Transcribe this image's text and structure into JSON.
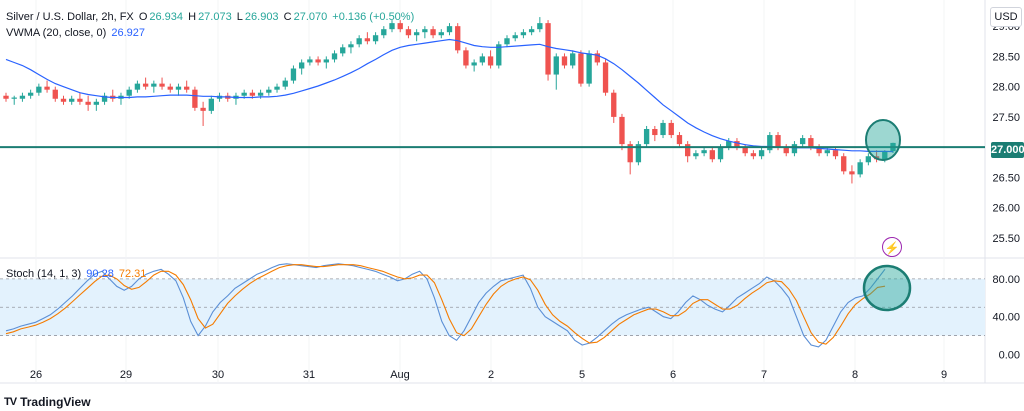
{
  "header": {
    "symbol": "Silver / U.S. Dollar, 2h, FX",
    "o_label": "O",
    "o_value": "26.934",
    "h_label": "H",
    "h_value": "27.073",
    "l_label": "L",
    "l_value": "26.903",
    "c_label": "C",
    "c_value": "27.070",
    "change": "+0.136 (+0.50%)"
  },
  "vwma": {
    "label": "VWMA (20, close, 0)",
    "value": "26.927"
  },
  "stoch": {
    "label": "Stoch (14, 1, 3)",
    "k_value": "90.28",
    "d_value": "72.31"
  },
  "currency": "USD",
  "current_price_tag": "27.000",
  "brand": {
    "logo": "TV",
    "name": "TradingView"
  },
  "colors": {
    "up": "#26a69a",
    "down": "#ef5350",
    "vwma": "#2962ff",
    "hline": "#1b7d73",
    "stoch_k": "#5b8fd6",
    "stoch_d": "#f57c00",
    "stoch_band": "#e3f2fd",
    "highlight": "#26a69a",
    "alert": "#9c27b0"
  },
  "chart_data": [
    {
      "type": "candlestick",
      "title": "Silver / U.S. Dollar, 2h, FX",
      "x_tick_labels": [
        "26",
        "29",
        "30",
        "31",
        "Aug",
        "2",
        "5",
        "6",
        "7",
        "8",
        "9"
      ],
      "y_tick_labels": [
        "29.00",
        "28.50",
        "28.00",
        "27.50",
        "27.000",
        "26.50",
        "26.00",
        "25.50"
      ],
      "ylim": [
        25.3,
        29.3
      ],
      "horizontal_line": 27.0,
      "ohlc": [
        [
          27.85,
          27.9,
          27.75,
          27.8
        ],
        [
          27.8,
          27.85,
          27.7,
          27.82
        ],
        [
          27.8,
          27.9,
          27.75,
          27.85
        ],
        [
          27.85,
          27.95,
          27.8,
          27.9
        ],
        [
          27.9,
          28.05,
          27.85,
          28.0
        ],
        [
          28.0,
          28.1,
          27.9,
          27.95
        ],
        [
          27.95,
          28.0,
          27.75,
          27.8
        ],
        [
          27.8,
          27.85,
          27.7,
          27.75
        ],
        [
          27.75,
          27.85,
          27.7,
          27.8
        ],
        [
          27.8,
          27.9,
          27.7,
          27.75
        ],
        [
          27.75,
          27.85,
          27.6,
          27.7
        ],
        [
          27.7,
          27.8,
          27.6,
          27.75
        ],
        [
          27.75,
          27.9,
          27.7,
          27.85
        ],
        [
          27.85,
          27.95,
          27.75,
          27.8
        ],
        [
          27.8,
          27.9,
          27.7,
          27.85
        ],
        [
          27.85,
          28.0,
          27.8,
          27.95
        ],
        [
          27.95,
          28.1,
          27.9,
          28.05
        ],
        [
          28.05,
          28.15,
          27.95,
          28.0
        ],
        [
          28.0,
          28.1,
          27.9,
          28.05
        ],
        [
          28.05,
          28.15,
          27.95,
          28.0
        ],
        [
          28.0,
          28.05,
          27.9,
          27.95
        ],
        [
          27.95,
          28.05,
          27.85,
          28.0
        ],
        [
          28.0,
          28.1,
          27.9,
          27.95
        ],
        [
          27.95,
          28.0,
          27.6,
          27.65
        ],
        [
          27.65,
          27.75,
          27.35,
          27.6
        ],
        [
          27.6,
          27.85,
          27.55,
          27.8
        ],
        [
          27.8,
          27.9,
          27.75,
          27.85
        ],
        [
          27.85,
          27.9,
          27.75,
          27.8
        ],
        [
          27.8,
          27.9,
          27.7,
          27.85
        ],
        [
          27.85,
          27.95,
          27.8,
          27.9
        ],
        [
          27.9,
          27.95,
          27.8,
          27.85
        ],
        [
          27.85,
          27.95,
          27.8,
          27.9
        ],
        [
          27.9,
          28.0,
          27.85,
          27.95
        ],
        [
          27.95,
          28.05,
          27.9,
          28.0
        ],
        [
          28.0,
          28.15,
          27.95,
          28.1
        ],
        [
          28.1,
          28.35,
          28.05,
          28.3
        ],
        [
          28.3,
          28.45,
          28.2,
          28.4
        ],
        [
          28.4,
          28.5,
          28.35,
          28.45
        ],
        [
          28.45,
          28.5,
          28.35,
          28.4
        ],
        [
          28.4,
          28.5,
          28.3,
          28.45
        ],
        [
          28.45,
          28.6,
          28.4,
          28.55
        ],
        [
          28.55,
          28.7,
          28.5,
          28.65
        ],
        [
          28.65,
          28.75,
          28.55,
          28.7
        ],
        [
          28.7,
          28.85,
          28.65,
          28.8
        ],
        [
          28.8,
          28.9,
          28.7,
          28.75
        ],
        [
          28.75,
          28.9,
          28.7,
          28.85
        ],
        [
          28.85,
          29.0,
          28.8,
          28.95
        ],
        [
          28.95,
          29.1,
          28.9,
          29.05
        ],
        [
          29.05,
          29.1,
          28.9,
          28.95
        ],
        [
          28.95,
          29.0,
          28.8,
          28.85
        ],
        [
          28.85,
          28.95,
          28.75,
          28.9
        ],
        [
          28.9,
          29.0,
          28.8,
          28.95
        ],
        [
          28.95,
          29.0,
          28.8,
          28.85
        ],
        [
          28.85,
          28.95,
          28.8,
          28.9
        ],
        [
          28.9,
          29.05,
          28.85,
          29.0
        ],
        [
          29.0,
          29.05,
          28.55,
          28.6
        ],
        [
          28.6,
          28.65,
          28.3,
          28.35
        ],
        [
          28.35,
          28.45,
          28.25,
          28.4
        ],
        [
          28.4,
          28.55,
          28.35,
          28.5
        ],
        [
          28.5,
          28.6,
          28.3,
          28.35
        ],
        [
          28.35,
          28.75,
          28.3,
          28.7
        ],
        [
          28.7,
          28.85,
          28.65,
          28.8
        ],
        [
          28.8,
          28.9,
          28.75,
          28.85
        ],
        [
          28.85,
          28.95,
          28.8,
          28.9
        ],
        [
          28.9,
          29.0,
          28.85,
          28.95
        ],
        [
          28.95,
          29.15,
          28.9,
          29.05
        ],
        [
          29.05,
          29.1,
          28.1,
          28.2
        ],
        [
          28.2,
          28.55,
          27.95,
          28.5
        ],
        [
          28.5,
          28.55,
          28.3,
          28.35
        ],
        [
          28.35,
          28.6,
          28.3,
          28.55
        ],
        [
          28.55,
          28.6,
          28.0,
          28.05
        ],
        [
          28.05,
          28.6,
          28.0,
          28.55
        ],
        [
          28.55,
          28.6,
          28.35,
          28.4
        ],
        [
          28.4,
          28.45,
          27.85,
          27.9
        ],
        [
          27.9,
          27.95,
          27.4,
          27.5
        ],
        [
          27.5,
          27.55,
          26.95,
          27.05
        ],
        [
          27.05,
          27.1,
          26.55,
          26.75
        ],
        [
          26.75,
          27.1,
          26.7,
          27.05
        ],
        [
          27.05,
          27.35,
          27.0,
          27.3
        ],
        [
          27.3,
          27.35,
          27.1,
          27.2
        ],
        [
          27.2,
          27.45,
          27.15,
          27.4
        ],
        [
          27.4,
          27.45,
          27.15,
          27.2
        ],
        [
          27.2,
          27.25,
          27.0,
          27.05
        ],
        [
          27.05,
          27.1,
          26.75,
          26.85
        ],
        [
          26.85,
          26.95,
          26.8,
          26.9
        ],
        [
          26.9,
          27.0,
          26.85,
          26.95
        ],
        [
          26.95,
          27.0,
          26.75,
          26.8
        ],
        [
          26.8,
          27.05,
          26.75,
          27.0
        ],
        [
          27.0,
          27.15,
          26.95,
          27.1
        ],
        [
          27.1,
          27.15,
          26.95,
          27.0
        ],
        [
          27.0,
          27.05,
          26.85,
          26.9
        ],
        [
          26.9,
          26.95,
          26.8,
          26.85
        ],
        [
          26.85,
          27.0,
          26.8,
          26.95
        ],
        [
          26.95,
          27.25,
          26.9,
          27.2
        ],
        [
          27.2,
          27.25,
          26.95,
          27.0
        ],
        [
          27.0,
          27.05,
          26.85,
          26.9
        ],
        [
          26.9,
          27.1,
          26.85,
          27.05
        ],
        [
          27.05,
          27.2,
          27.0,
          27.15
        ],
        [
          27.15,
          27.2,
          26.95,
          27.0
        ],
        [
          27.0,
          27.05,
          26.85,
          26.9
        ],
        [
          26.9,
          27.0,
          26.85,
          26.95
        ],
        [
          26.95,
          27.0,
          26.8,
          26.85
        ],
        [
          26.85,
          26.9,
          26.55,
          26.6
        ],
        [
          26.6,
          26.7,
          26.4,
          26.55
        ],
        [
          26.55,
          26.8,
          26.5,
          26.75
        ],
        [
          26.75,
          26.9,
          26.7,
          26.85
        ],
        [
          26.85,
          26.95,
          26.75,
          26.8
        ],
        [
          26.8,
          26.95,
          26.75,
          26.93
        ],
        [
          26.934,
          27.073,
          26.903,
          27.07
        ]
      ],
      "vwma": [
        28.45,
        28.4,
        28.35,
        28.28,
        28.2,
        28.12,
        28.05,
        28.0,
        27.95,
        27.9,
        27.87,
        27.85,
        27.83,
        27.82,
        27.82,
        27.82,
        27.83,
        27.83,
        27.84,
        27.85,
        27.86,
        27.86,
        27.86,
        27.85,
        27.84,
        27.84,
        27.83,
        27.83,
        27.82,
        27.82,
        27.82,
        27.83,
        27.83,
        27.84,
        27.86,
        27.89,
        27.93,
        27.97,
        28.01,
        28.06,
        28.11,
        28.17,
        28.23,
        28.3,
        28.38,
        28.45,
        28.53,
        28.6,
        28.65,
        28.68,
        28.7,
        28.72,
        28.74,
        28.76,
        28.78,
        28.76,
        28.72,
        28.68,
        28.66,
        28.65,
        28.65,
        28.66,
        28.67,
        28.68,
        28.69,
        28.7,
        28.66,
        28.63,
        28.61,
        28.59,
        28.56,
        28.54,
        28.52,
        28.46,
        28.38,
        28.28,
        28.17,
        28.06,
        27.94,
        27.82,
        27.7,
        27.6,
        27.5,
        27.4,
        27.32,
        27.25,
        27.19,
        27.14,
        27.1,
        27.07,
        27.04,
        27.02,
        27.01,
        27.01,
        27.0,
        27.0,
        26.99,
        26.99,
        26.99,
        26.98,
        26.97,
        26.96,
        26.95,
        26.94,
        26.94,
        26.93,
        26.93,
        26.93,
        26.927
      ]
    },
    {
      "type": "line",
      "title": "Stoch (14, 1, 3)",
      "y_tick_labels": [
        "80.00",
        "40.00",
        "0.00"
      ],
      "ylim": [
        -8,
        100
      ],
      "bands": [
        20,
        50,
        80
      ],
      "series": [
        {
          "name": "%K",
          "values": [
            25,
            27,
            30,
            32,
            34,
            38,
            42,
            48,
            55,
            62,
            70,
            78,
            85,
            88,
            80,
            72,
            68,
            72,
            80,
            85,
            88,
            90,
            85,
            78,
            60,
            35,
            20,
            30,
            45,
            55,
            62,
            70,
            75,
            80,
            85,
            88,
            92,
            95,
            96,
            95,
            94,
            93,
            92,
            94,
            95,
            96,
            95,
            94,
            92,
            90,
            88,
            85,
            82,
            78,
            80,
            85,
            88,
            80,
            60,
            35,
            20,
            15,
            25,
            40,
            55,
            65,
            72,
            78,
            80,
            82,
            84,
            70,
            50,
            40,
            35,
            30,
            25,
            15,
            10,
            12,
            18,
            25,
            32,
            38,
            42,
            45,
            48,
            50,
            45,
            40,
            38,
            45,
            55,
            62,
            58,
            52,
            48,
            45,
            52,
            60,
            65,
            70,
            75,
            82,
            78,
            70,
            60,
            40,
            20,
            10,
            8,
            15,
            30,
            45,
            55,
            60,
            62,
            70,
            80,
            90.28
          ]
        },
        {
          "name": "%D",
          "values": [
            22,
            24,
            27,
            29,
            31,
            34,
            38,
            43,
            49,
            56,
            63,
            70,
            77,
            83,
            84,
            80,
            73,
            69,
            71,
            77,
            84,
            88,
            88,
            84,
            74,
            58,
            38,
            28,
            32,
            43,
            54,
            62,
            69,
            75,
            80,
            84,
            88,
            92,
            94,
            95,
            95,
            94,
            93,
            93,
            94,
            95,
            95,
            95,
            94,
            92,
            90,
            88,
            85,
            82,
            80,
            81,
            84,
            84,
            76,
            58,
            38,
            23,
            20,
            27,
            40,
            53,
            64,
            72,
            77,
            80,
            82,
            79,
            68,
            53,
            42,
            35,
            30,
            23,
            17,
            12,
            13,
            18,
            25,
            32,
            37,
            42,
            45,
            48,
            48,
            45,
            41,
            41,
            46,
            54,
            58,
            58,
            53,
            48,
            48,
            52,
            59,
            65,
            70,
            76,
            78,
            77,
            69,
            57,
            40,
            23,
            13,
            11,
            18,
            30,
            43,
            53,
            59,
            64,
            71,
            72.31
          ]
        }
      ],
      "x_tick_labels": [
        "26",
        "29",
        "30",
        "31",
        "Aug",
        "2",
        "5",
        "6",
        "7",
        "8",
        "9"
      ]
    }
  ]
}
